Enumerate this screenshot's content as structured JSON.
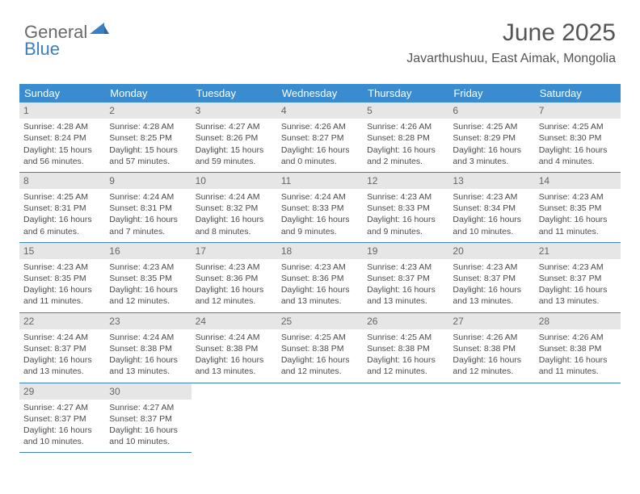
{
  "logo": {
    "text1": "General",
    "text2": "Blue"
  },
  "header": {
    "title": "June 2025",
    "location": "Javarthushuu, East Aimak, Mongolia"
  },
  "colors": {
    "header_bg": "#3b8bd1",
    "header_text": "#ffffff",
    "border": "#3b7fc4",
    "daynum_bg": "#e6e6e6",
    "daynum_text": "#666666",
    "body_text": "#4a4a4a",
    "title_text": "#555555"
  },
  "weekdays": [
    "Sunday",
    "Monday",
    "Tuesday",
    "Wednesday",
    "Thursday",
    "Friday",
    "Saturday"
  ],
  "days": {
    "1": {
      "sunrise": "Sunrise: 4:28 AM",
      "sunset": "Sunset: 8:24 PM",
      "d1": "Daylight: 15 hours",
      "d2": "and 56 minutes."
    },
    "2": {
      "sunrise": "Sunrise: 4:28 AM",
      "sunset": "Sunset: 8:25 PM",
      "d1": "Daylight: 15 hours",
      "d2": "and 57 minutes."
    },
    "3": {
      "sunrise": "Sunrise: 4:27 AM",
      "sunset": "Sunset: 8:26 PM",
      "d1": "Daylight: 15 hours",
      "d2": "and 59 minutes."
    },
    "4": {
      "sunrise": "Sunrise: 4:26 AM",
      "sunset": "Sunset: 8:27 PM",
      "d1": "Daylight: 16 hours",
      "d2": "and 0 minutes."
    },
    "5": {
      "sunrise": "Sunrise: 4:26 AM",
      "sunset": "Sunset: 8:28 PM",
      "d1": "Daylight: 16 hours",
      "d2": "and 2 minutes."
    },
    "6": {
      "sunrise": "Sunrise: 4:25 AM",
      "sunset": "Sunset: 8:29 PM",
      "d1": "Daylight: 16 hours",
      "d2": "and 3 minutes."
    },
    "7": {
      "sunrise": "Sunrise: 4:25 AM",
      "sunset": "Sunset: 8:30 PM",
      "d1": "Daylight: 16 hours",
      "d2": "and 4 minutes."
    },
    "8": {
      "sunrise": "Sunrise: 4:25 AM",
      "sunset": "Sunset: 8:31 PM",
      "d1": "Daylight: 16 hours",
      "d2": "and 6 minutes."
    },
    "9": {
      "sunrise": "Sunrise: 4:24 AM",
      "sunset": "Sunset: 8:31 PM",
      "d1": "Daylight: 16 hours",
      "d2": "and 7 minutes."
    },
    "10": {
      "sunrise": "Sunrise: 4:24 AM",
      "sunset": "Sunset: 8:32 PM",
      "d1": "Daylight: 16 hours",
      "d2": "and 8 minutes."
    },
    "11": {
      "sunrise": "Sunrise: 4:24 AM",
      "sunset": "Sunset: 8:33 PM",
      "d1": "Daylight: 16 hours",
      "d2": "and 9 minutes."
    },
    "12": {
      "sunrise": "Sunrise: 4:23 AM",
      "sunset": "Sunset: 8:33 PM",
      "d1": "Daylight: 16 hours",
      "d2": "and 9 minutes."
    },
    "13": {
      "sunrise": "Sunrise: 4:23 AM",
      "sunset": "Sunset: 8:34 PM",
      "d1": "Daylight: 16 hours",
      "d2": "and 10 minutes."
    },
    "14": {
      "sunrise": "Sunrise: 4:23 AM",
      "sunset": "Sunset: 8:35 PM",
      "d1": "Daylight: 16 hours",
      "d2": "and 11 minutes."
    },
    "15": {
      "sunrise": "Sunrise: 4:23 AM",
      "sunset": "Sunset: 8:35 PM",
      "d1": "Daylight: 16 hours",
      "d2": "and 11 minutes."
    },
    "16": {
      "sunrise": "Sunrise: 4:23 AM",
      "sunset": "Sunset: 8:35 PM",
      "d1": "Daylight: 16 hours",
      "d2": "and 12 minutes."
    },
    "17": {
      "sunrise": "Sunrise: 4:23 AM",
      "sunset": "Sunset: 8:36 PM",
      "d1": "Daylight: 16 hours",
      "d2": "and 12 minutes."
    },
    "18": {
      "sunrise": "Sunrise: 4:23 AM",
      "sunset": "Sunset: 8:36 PM",
      "d1": "Daylight: 16 hours",
      "d2": "and 13 minutes."
    },
    "19": {
      "sunrise": "Sunrise: 4:23 AM",
      "sunset": "Sunset: 8:37 PM",
      "d1": "Daylight: 16 hours",
      "d2": "and 13 minutes."
    },
    "20": {
      "sunrise": "Sunrise: 4:23 AM",
      "sunset": "Sunset: 8:37 PM",
      "d1": "Daylight: 16 hours",
      "d2": "and 13 minutes."
    },
    "21": {
      "sunrise": "Sunrise: 4:23 AM",
      "sunset": "Sunset: 8:37 PM",
      "d1": "Daylight: 16 hours",
      "d2": "and 13 minutes."
    },
    "22": {
      "sunrise": "Sunrise: 4:24 AM",
      "sunset": "Sunset: 8:37 PM",
      "d1": "Daylight: 16 hours",
      "d2": "and 13 minutes."
    },
    "23": {
      "sunrise": "Sunrise: 4:24 AM",
      "sunset": "Sunset: 8:38 PM",
      "d1": "Daylight: 16 hours",
      "d2": "and 13 minutes."
    },
    "24": {
      "sunrise": "Sunrise: 4:24 AM",
      "sunset": "Sunset: 8:38 PM",
      "d1": "Daylight: 16 hours",
      "d2": "and 13 minutes."
    },
    "25": {
      "sunrise": "Sunrise: 4:25 AM",
      "sunset": "Sunset: 8:38 PM",
      "d1": "Daylight: 16 hours",
      "d2": "and 12 minutes."
    },
    "26": {
      "sunrise": "Sunrise: 4:25 AM",
      "sunset": "Sunset: 8:38 PM",
      "d1": "Daylight: 16 hours",
      "d2": "and 12 minutes."
    },
    "27": {
      "sunrise": "Sunrise: 4:26 AM",
      "sunset": "Sunset: 8:38 PM",
      "d1": "Daylight: 16 hours",
      "d2": "and 12 minutes."
    },
    "28": {
      "sunrise": "Sunrise: 4:26 AM",
      "sunset": "Sunset: 8:38 PM",
      "d1": "Daylight: 16 hours",
      "d2": "and 11 minutes."
    },
    "29": {
      "sunrise": "Sunrise: 4:27 AM",
      "sunset": "Sunset: 8:37 PM",
      "d1": "Daylight: 16 hours",
      "d2": "and 10 minutes."
    },
    "30": {
      "sunrise": "Sunrise: 4:27 AM",
      "sunset": "Sunset: 8:37 PM",
      "d1": "Daylight: 16 hours",
      "d2": "and 10 minutes."
    }
  },
  "layout": {
    "start_weekday": 0,
    "num_days": 30,
    "rows": 5
  }
}
